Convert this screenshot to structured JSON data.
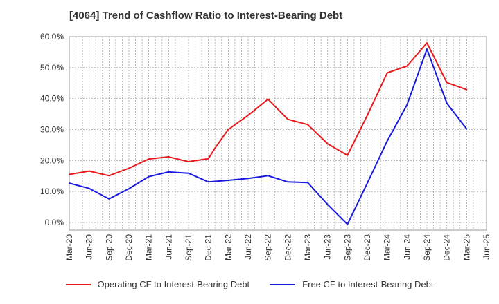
{
  "chart_data": {
    "type": "line",
    "title": "[4064]  Trend of Cashflow Ratio to Interest-Bearing Debt",
    "xlabel": "",
    "ylabel": "",
    "ylim": [
      0,
      60
    ],
    "grid": true,
    "legend_position": "bottom",
    "x_ticks": [
      "Mar-20",
      "Jun-20",
      "Sep-20",
      "Dec-20",
      "Mar-21",
      "Jun-21",
      "Sep-21",
      "Dec-21",
      "Mar-22",
      "Jun-22",
      "Sep-22",
      "Dec-22",
      "Mar-23",
      "Jun-23",
      "Sep-23",
      "Dec-23",
      "Mar-24",
      "Jun-24",
      "Sep-24",
      "Dec-24",
      "Mar-25",
      "Jun-25"
    ],
    "y_ticks": [
      "0.0%",
      "10.0%",
      "20.0%",
      "30.0%",
      "40.0%",
      "50.0%",
      "60.0%"
    ],
    "y_tick_values": [
      0,
      10,
      20,
      30,
      40,
      50,
      60
    ],
    "series": [
      {
        "name": "Operating CF to Interest-Bearing Debt",
        "color": "#e8191c",
        "x": [
          "Mar-20",
          "Jun-20",
          "Sep-20",
          "Dec-20",
          "Mar-21",
          "Jun-21",
          "Sep-21",
          "Dec-21",
          "Jan-22",
          "Mar-22",
          "Jun-22",
          "Sep-22",
          "Dec-22",
          "Mar-23",
          "Jun-23",
          "Sep-23",
          "Dec-23",
          "Mar-24",
          "Jun-24",
          "Sep-24",
          "Dec-24",
          "Mar-25"
        ],
        "values": [
          15.5,
          16.6,
          15.1,
          17.5,
          20.5,
          21.2,
          19.6,
          20.6,
          24.0,
          30.0,
          34.6,
          39.8,
          33.3,
          31.6,
          25.4,
          21.7,
          34.6,
          48.3,
          50.5,
          58.0,
          45.2,
          42.9
        ]
      },
      {
        "name": "Free CF to Interest-Bearing Debt",
        "color": "#1a1adf",
        "x": [
          "Mar-20",
          "Jun-20",
          "Sep-20",
          "Dec-20",
          "Mar-21",
          "Jun-21",
          "Sep-21",
          "Dec-21",
          "Mar-22",
          "Jun-22",
          "Sep-22",
          "Dec-22",
          "Mar-23",
          "Jun-23",
          "Sep-23",
          "Dec-23",
          "Mar-24",
          "Jun-24",
          "Sep-24",
          "Dec-24",
          "Mar-25"
        ],
        "values": [
          12.7,
          11.0,
          7.6,
          10.9,
          14.8,
          16.3,
          15.9,
          13.1,
          13.6,
          14.2,
          15.1,
          13.1,
          12.9,
          5.8,
          -0.6,
          12.7,
          26.3,
          38.0,
          56.0,
          38.5,
          30.2
        ]
      }
    ]
  }
}
